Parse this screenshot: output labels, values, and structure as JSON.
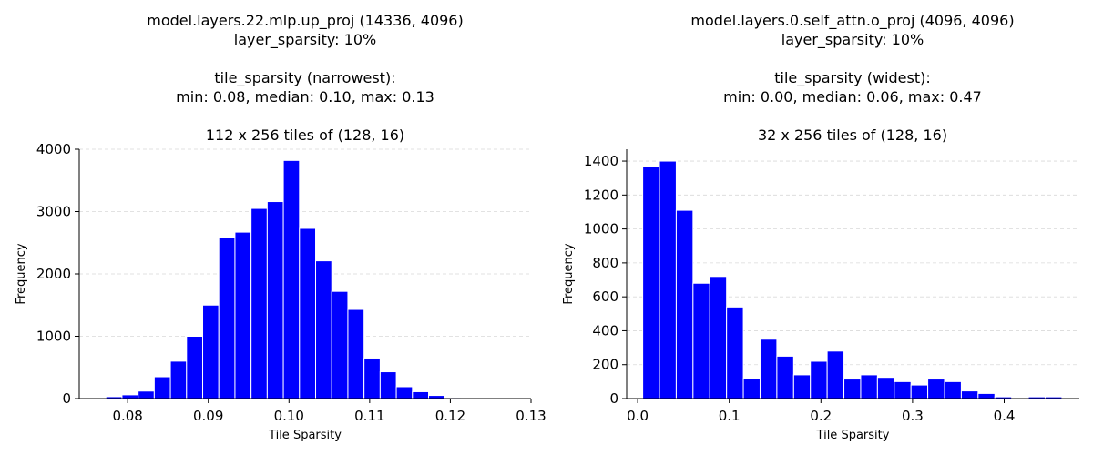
{
  "chart_data": [
    {
      "type": "bar",
      "title_lines": [
        "model.layers.22.mlp.up_proj (14336, 4096)",
        "layer_sparsity: 10%",
        "",
        "tile_sparsity (narrowest):",
        "min: 0.08, median: 0.10, max: 0.13",
        "",
        "112 x 256 tiles of (128, 16)"
      ],
      "xlabel": "Tile Sparsity",
      "ylabel": "Frequency",
      "xlim": [
        0.074,
        0.13
      ],
      "ylim": [
        0,
        4000
      ],
      "xticks": [
        0.08,
        0.09,
        0.1,
        0.11,
        0.12,
        0.13
      ],
      "xtick_labels": [
        "0.08",
        "0.09",
        "0.10",
        "0.11",
        "0.12",
        "0.13"
      ],
      "yticks": [
        0,
        1000,
        2000,
        3000,
        4000
      ],
      "ytick_labels": [
        "0",
        "1000",
        "2000",
        "3000",
        "4000"
      ],
      "grid": "y-dashed",
      "bar_color": "#0000ff",
      "bin_edges": [
        0.0773,
        0.0793,
        0.0813,
        0.0833,
        0.0853,
        0.0873,
        0.0893,
        0.0913,
        0.0933,
        0.0953,
        0.0973,
        0.0993,
        0.1013,
        0.1033,
        0.1053,
        0.1073,
        0.1093,
        0.1113,
        0.1133,
        0.1153,
        0.1173,
        0.1193,
        0.1213,
        0.1233
      ],
      "values": [
        30,
        60,
        120,
        350,
        600,
        1000,
        1500,
        2580,
        2670,
        3050,
        3160,
        3820,
        2730,
        2210,
        1720,
        1430,
        650,
        430,
        190,
        110,
        50,
        15,
        5
      ]
    },
    {
      "type": "bar",
      "title_lines": [
        "model.layers.0.self_attn.o_proj (4096, 4096)",
        "layer_sparsity: 10%",
        "",
        "tile_sparsity (widest):",
        "min: 0.00, median: 0.06, max: 0.47",
        "",
        "32 x 256 tiles of (128, 16)"
      ],
      "xlabel": "Tile Sparsity",
      "ylabel": "Frequency",
      "xlim": [
        -0.012,
        0.482
      ],
      "ylim": [
        0,
        1470
      ],
      "xticks": [
        0.0,
        0.1,
        0.2,
        0.3,
        0.4
      ],
      "xtick_labels": [
        "0.0",
        "0.1",
        "0.2",
        "0.3",
        "0.4"
      ],
      "yticks": [
        0,
        200,
        400,
        600,
        800,
        1000,
        1200,
        1400
      ],
      "ytick_labels": [
        "0",
        "200",
        "400",
        "600",
        "800",
        "1000",
        "1200",
        "1400"
      ],
      "grid": "y-dashed",
      "bar_color": "#0000ff",
      "bin_edges": [
        0.0055,
        0.0238,
        0.0421,
        0.0604,
        0.0787,
        0.097,
        0.1153,
        0.1336,
        0.1519,
        0.1702,
        0.1885,
        0.2068,
        0.2251,
        0.2434,
        0.2617,
        0.28,
        0.2983,
        0.3166,
        0.3349,
        0.3532,
        0.3715,
        0.3898,
        0.4081,
        0.4264,
        0.4447,
        0.463
      ],
      "values": [
        1370,
        1400,
        1110,
        680,
        720,
        540,
        120,
        350,
        250,
        140,
        220,
        280,
        115,
        140,
        125,
        100,
        80,
        115,
        100,
        45,
        30,
        10,
        0,
        10,
        10
      ]
    }
  ]
}
